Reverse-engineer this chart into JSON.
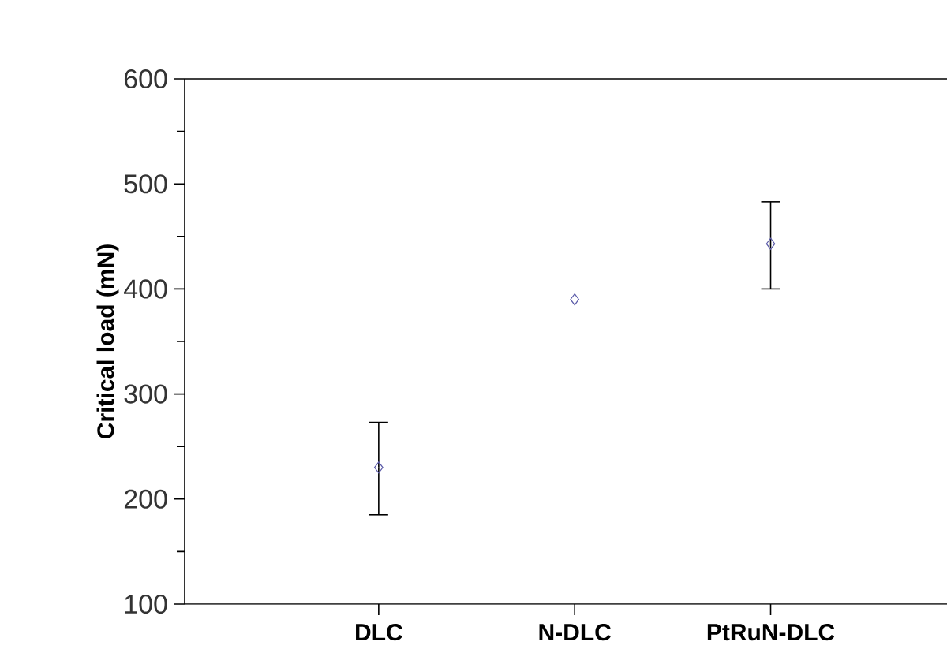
{
  "chart_data": {
    "type": "scatter",
    "ylabel": "Critical load (mN)",
    "categories": [
      "DLC",
      "N-DLC",
      "PtRuN-DLC"
    ],
    "values": [
      230,
      390,
      443
    ],
    "errors": [
      [
        185,
        273
      ],
      null,
      [
        400,
        483
      ]
    ],
    "color": "#5a5aa8",
    "marker": "diamond",
    "grid": false,
    "ylim": [
      100,
      600
    ],
    "yticks": [
      100,
      200,
      300,
      400,
      500,
      600
    ]
  }
}
